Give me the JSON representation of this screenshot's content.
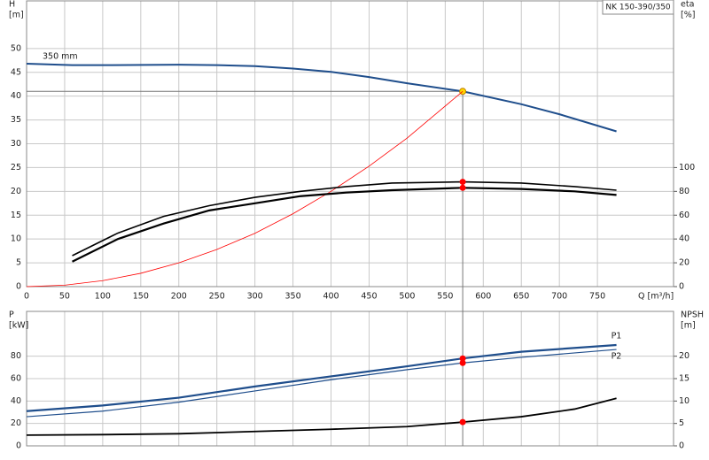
{
  "chart_data": [
    {
      "type": "line",
      "title": "NK 150-390/350",
      "y_label": [
        "H",
        "[m]"
      ],
      "y2_label": [
        "eta",
        "[%]"
      ],
      "x_label": "Q [m³/h]",
      "xlim": [
        0,
        850
      ],
      "xticks": [
        0,
        50,
        100,
        150,
        200,
        250,
        300,
        350,
        400,
        450,
        500,
        550,
        600,
        650,
        700,
        750
      ],
      "ylim": [
        0,
        60
      ],
      "yticks": [
        0,
        5,
        10,
        15,
        20,
        25,
        30,
        35,
        40,
        45,
        50
      ],
      "y2lim": [
        0,
        240
      ],
      "y2ticks": [
        0,
        20,
        40,
        60,
        80,
        100
      ],
      "grid": true,
      "duty_point": {
        "x": 573,
        "y": 41
      },
      "series": [
        {
          "name": "350 mm",
          "color": "#1f4e8c",
          "marker_color": "#ffd700",
          "x": [
            0,
            60,
            100,
            200,
            250,
            300,
            350,
            400,
            450,
            500,
            573,
            650,
            700,
            775
          ],
          "values": [
            46.8,
            46.5,
            46.5,
            46.6,
            46.5,
            46.3,
            45.8,
            45.1,
            44.0,
            42.7,
            41,
            38.3,
            36.2,
            32.6
          ]
        },
        {
          "color": "#ff0000",
          "x": [
            0,
            50,
            100,
            150,
            200,
            250,
            300,
            350,
            400,
            450,
            500,
            573
          ],
          "values": [
            0,
            0.3,
            1.25,
            2.8,
            5.0,
            7.8,
            11.2,
            15.3,
            20.0,
            25.3,
            31.2,
            41
          ]
        },
        {
          "color": "#000000",
          "axis": "y2",
          "marker_color": "#ff0000",
          "x": [
            60,
            120,
            180,
            240,
            300,
            360,
            420,
            480,
            573,
            650,
            720,
            775
          ],
          "values": [
            26,
            45,
            59,
            68,
            75,
            80,
            84,
            87,
            88,
            87,
            84,
            81
          ]
        },
        {
          "color": "#000000",
          "axis": "y2",
          "marker_color": "#ff0000",
          "x": [
            60,
            120,
            180,
            240,
            300,
            360,
            420,
            480,
            573,
            650,
            720,
            775
          ],
          "values": [
            21,
            40,
            53,
            64,
            70,
            76,
            79,
            81,
            83,
            82,
            80,
            77
          ]
        }
      ]
    },
    {
      "type": "line",
      "y_label": [
        "P",
        "[kW]"
      ],
      "y2_label": [
        "NPSH",
        "[m]"
      ],
      "xlim": [
        0,
        850
      ],
      "ylim": [
        0,
        120
      ],
      "yticks": [
        0,
        20,
        40,
        60,
        80
      ],
      "y2lim": [
        0,
        30
      ],
      "y2ticks": [
        0,
        5,
        10,
        15,
        20
      ],
      "grid": true,
      "series": [
        {
          "name": "P1",
          "color": "#1f4e8c",
          "marker_color": "#ff0000",
          "x": [
            0,
            100,
            200,
            300,
            400,
            500,
            573,
            650,
            775
          ],
          "values": [
            31,
            36,
            43,
            53,
            62,
            71,
            78,
            84,
            90
          ]
        },
        {
          "name": "P2",
          "color": "#1f4e8c",
          "marker_color": "#ff0000",
          "x": [
            0,
            100,
            200,
            300,
            400,
            500,
            573,
            650,
            775
          ],
          "values": [
            26,
            31,
            39,
            49,
            59,
            68,
            74,
            79,
            86
          ]
        },
        {
          "color": "#000000",
          "axis": "y2",
          "marker_color": "#ff0000",
          "x": [
            0,
            100,
            200,
            300,
            400,
            500,
            573,
            650,
            720,
            775
          ],
          "values": [
            2.4,
            2.5,
            2.7,
            3.2,
            3.7,
            4.3,
            5.3,
            6.5,
            8.2,
            10.6
          ]
        }
      ]
    }
  ]
}
